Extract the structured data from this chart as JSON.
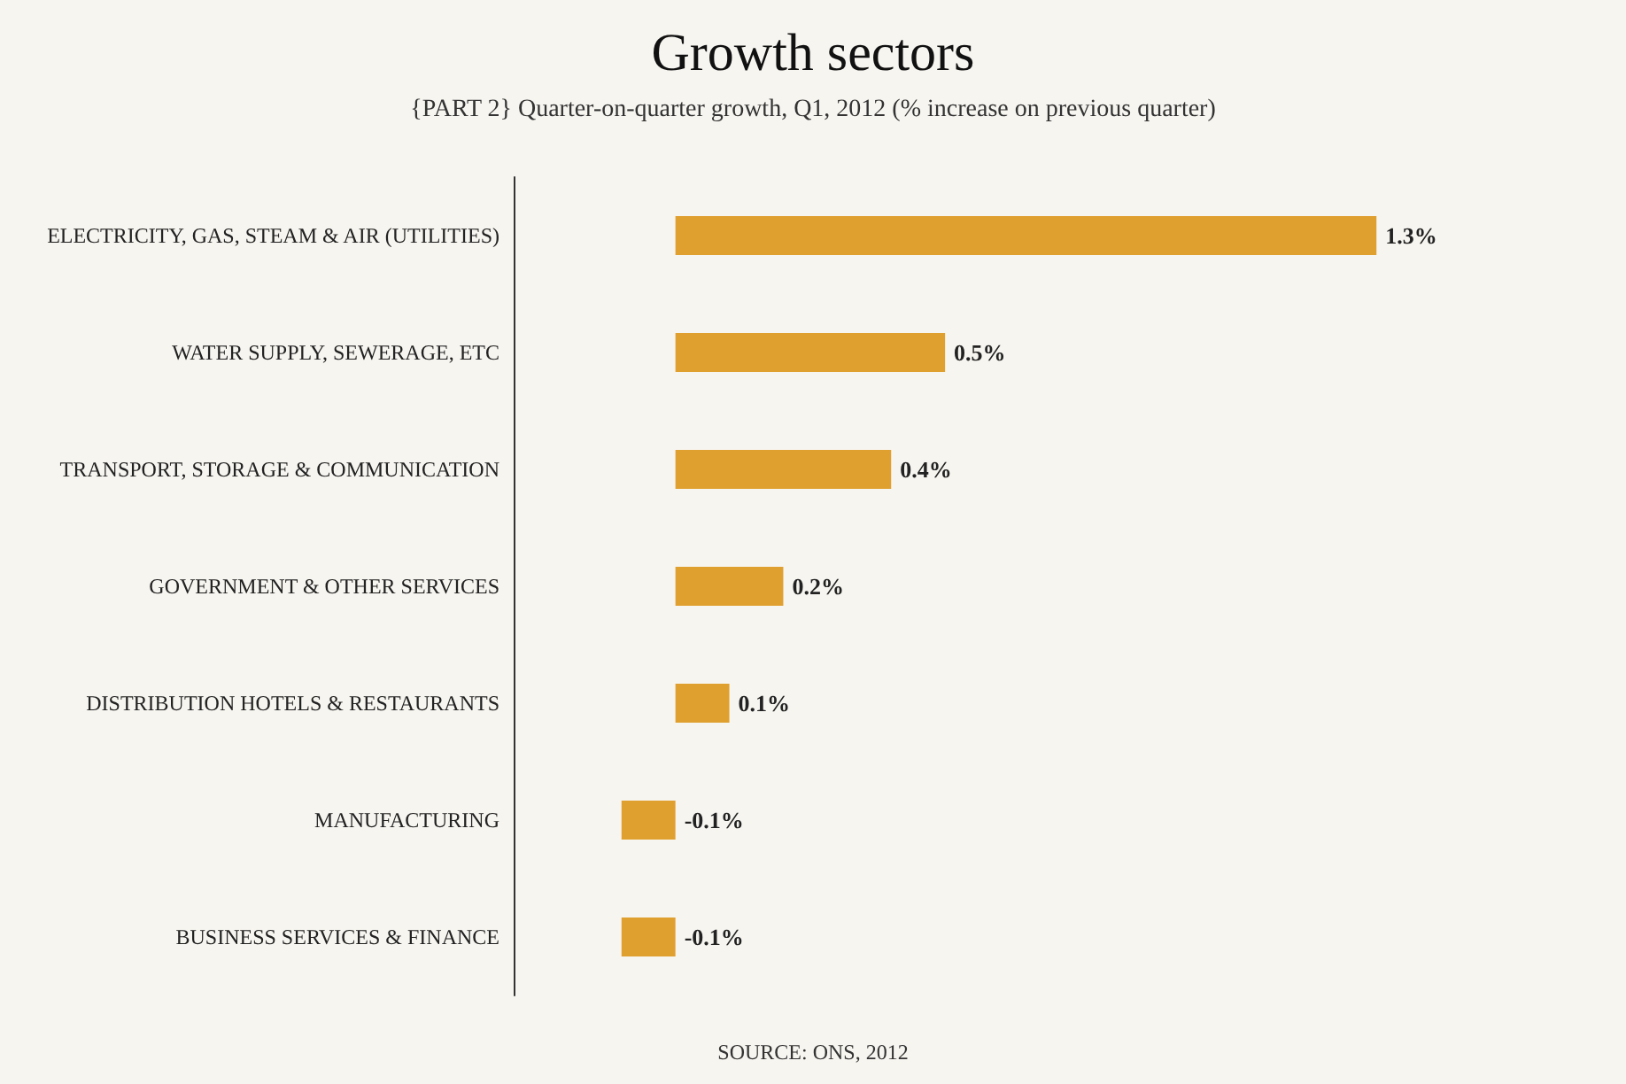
{
  "chart_data": {
    "type": "bar",
    "title": "Growth sectors",
    "subtitle": "{PART 2} Quarter-on-quarter growth, Q1, 2012 (% increase on previous quarter)",
    "orientation": "horizontal",
    "categories": [
      "ELECTRICITY, GAS, STEAM & AIR (UTILITIES)",
      "WATER SUPPLY, SEWERAGE, ETC",
      "TRANSPORT, STORAGE & COMMUNICATION",
      "GOVERNMENT & OTHER SERVICES",
      "DISTRIBUTION HOTELS & RESTAURANTS",
      "MANUFACTURING",
      "BUSINESS SERVICES & FINANCE"
    ],
    "values": [
      1.3,
      0.5,
      0.4,
      0.2,
      0.1,
      -0.1,
      -0.1
    ],
    "value_labels": [
      "1.3%",
      "0.5%",
      "0.4%",
      "0.2%",
      "0.1%",
      "-0.1%",
      "-0.1%"
    ],
    "color": "#e0a030",
    "annotations": [
      "SOURCE: ONS, 2012"
    ],
    "tick_labels": "y"
  }
}
